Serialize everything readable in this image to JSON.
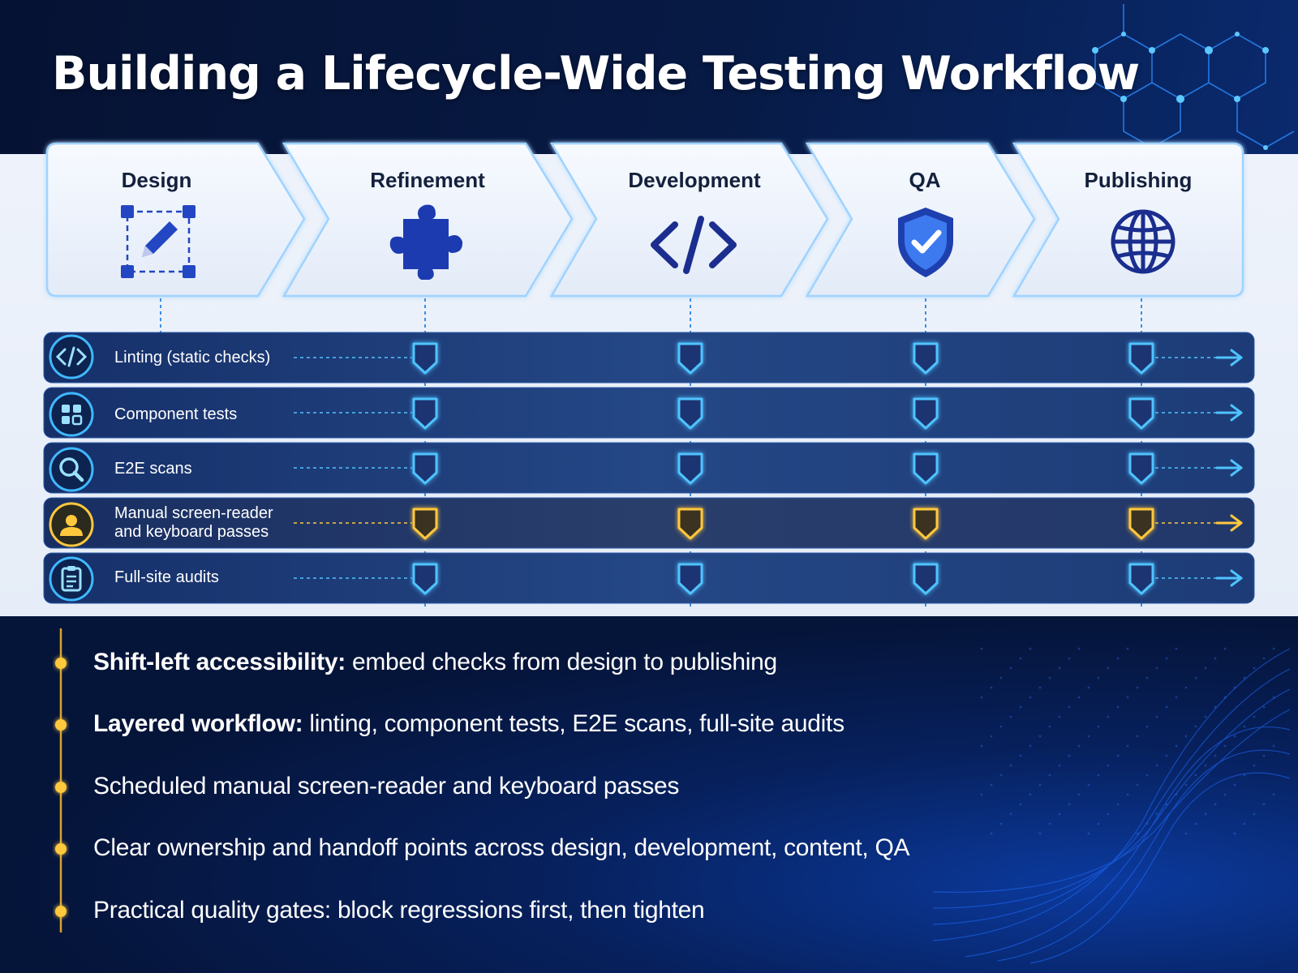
{
  "title": "Building a Lifecycle-Wide Testing Workflow",
  "stages": [
    {
      "label": "Design",
      "icon": "design-edit-icon"
    },
    {
      "label": "Refinement",
      "icon": "puzzle-icon"
    },
    {
      "label": "Development",
      "icon": "code-icon"
    },
    {
      "label": "QA",
      "icon": "shield-check-icon"
    },
    {
      "label": "Publishing",
      "icon": "globe-icon"
    }
  ],
  "rows": [
    {
      "label": "Linting (static checks)",
      "icon": "code-icon",
      "highlight": false
    },
    {
      "label": "Component tests",
      "icon": "components-grid-icon",
      "highlight": false
    },
    {
      "label": "E2E scans",
      "icon": "magnifier-icon",
      "highlight": false
    },
    {
      "label": "Manual screen-reader",
      "label2": "and keyboard passes",
      "icon": "person-icon",
      "highlight": true
    },
    {
      "label": "Full-site audits",
      "icon": "clipboard-icon",
      "highlight": false
    }
  ],
  "bullets": [
    {
      "bold": "Shift-left accessibility:",
      "text": " embed checks from design to publishing"
    },
    {
      "bold": "Layered workflow:",
      "text": " linting, component tests, E2E scans, full-site audits"
    },
    {
      "bold": "",
      "text": "Scheduled manual screen-reader and keyboard passes"
    },
    {
      "bold": "",
      "text": "Clear ownership and handoff points across design, development, content, QA"
    },
    {
      "bold": "",
      "text": "Practical quality gates: block regressions first, then tighten"
    }
  ],
  "colors": {
    "accent_blue": "#4fc3ff",
    "accent_gold": "#ffc83d",
    "icon_blue": "#1e3fae",
    "row_bg": "#1f3f7a"
  }
}
